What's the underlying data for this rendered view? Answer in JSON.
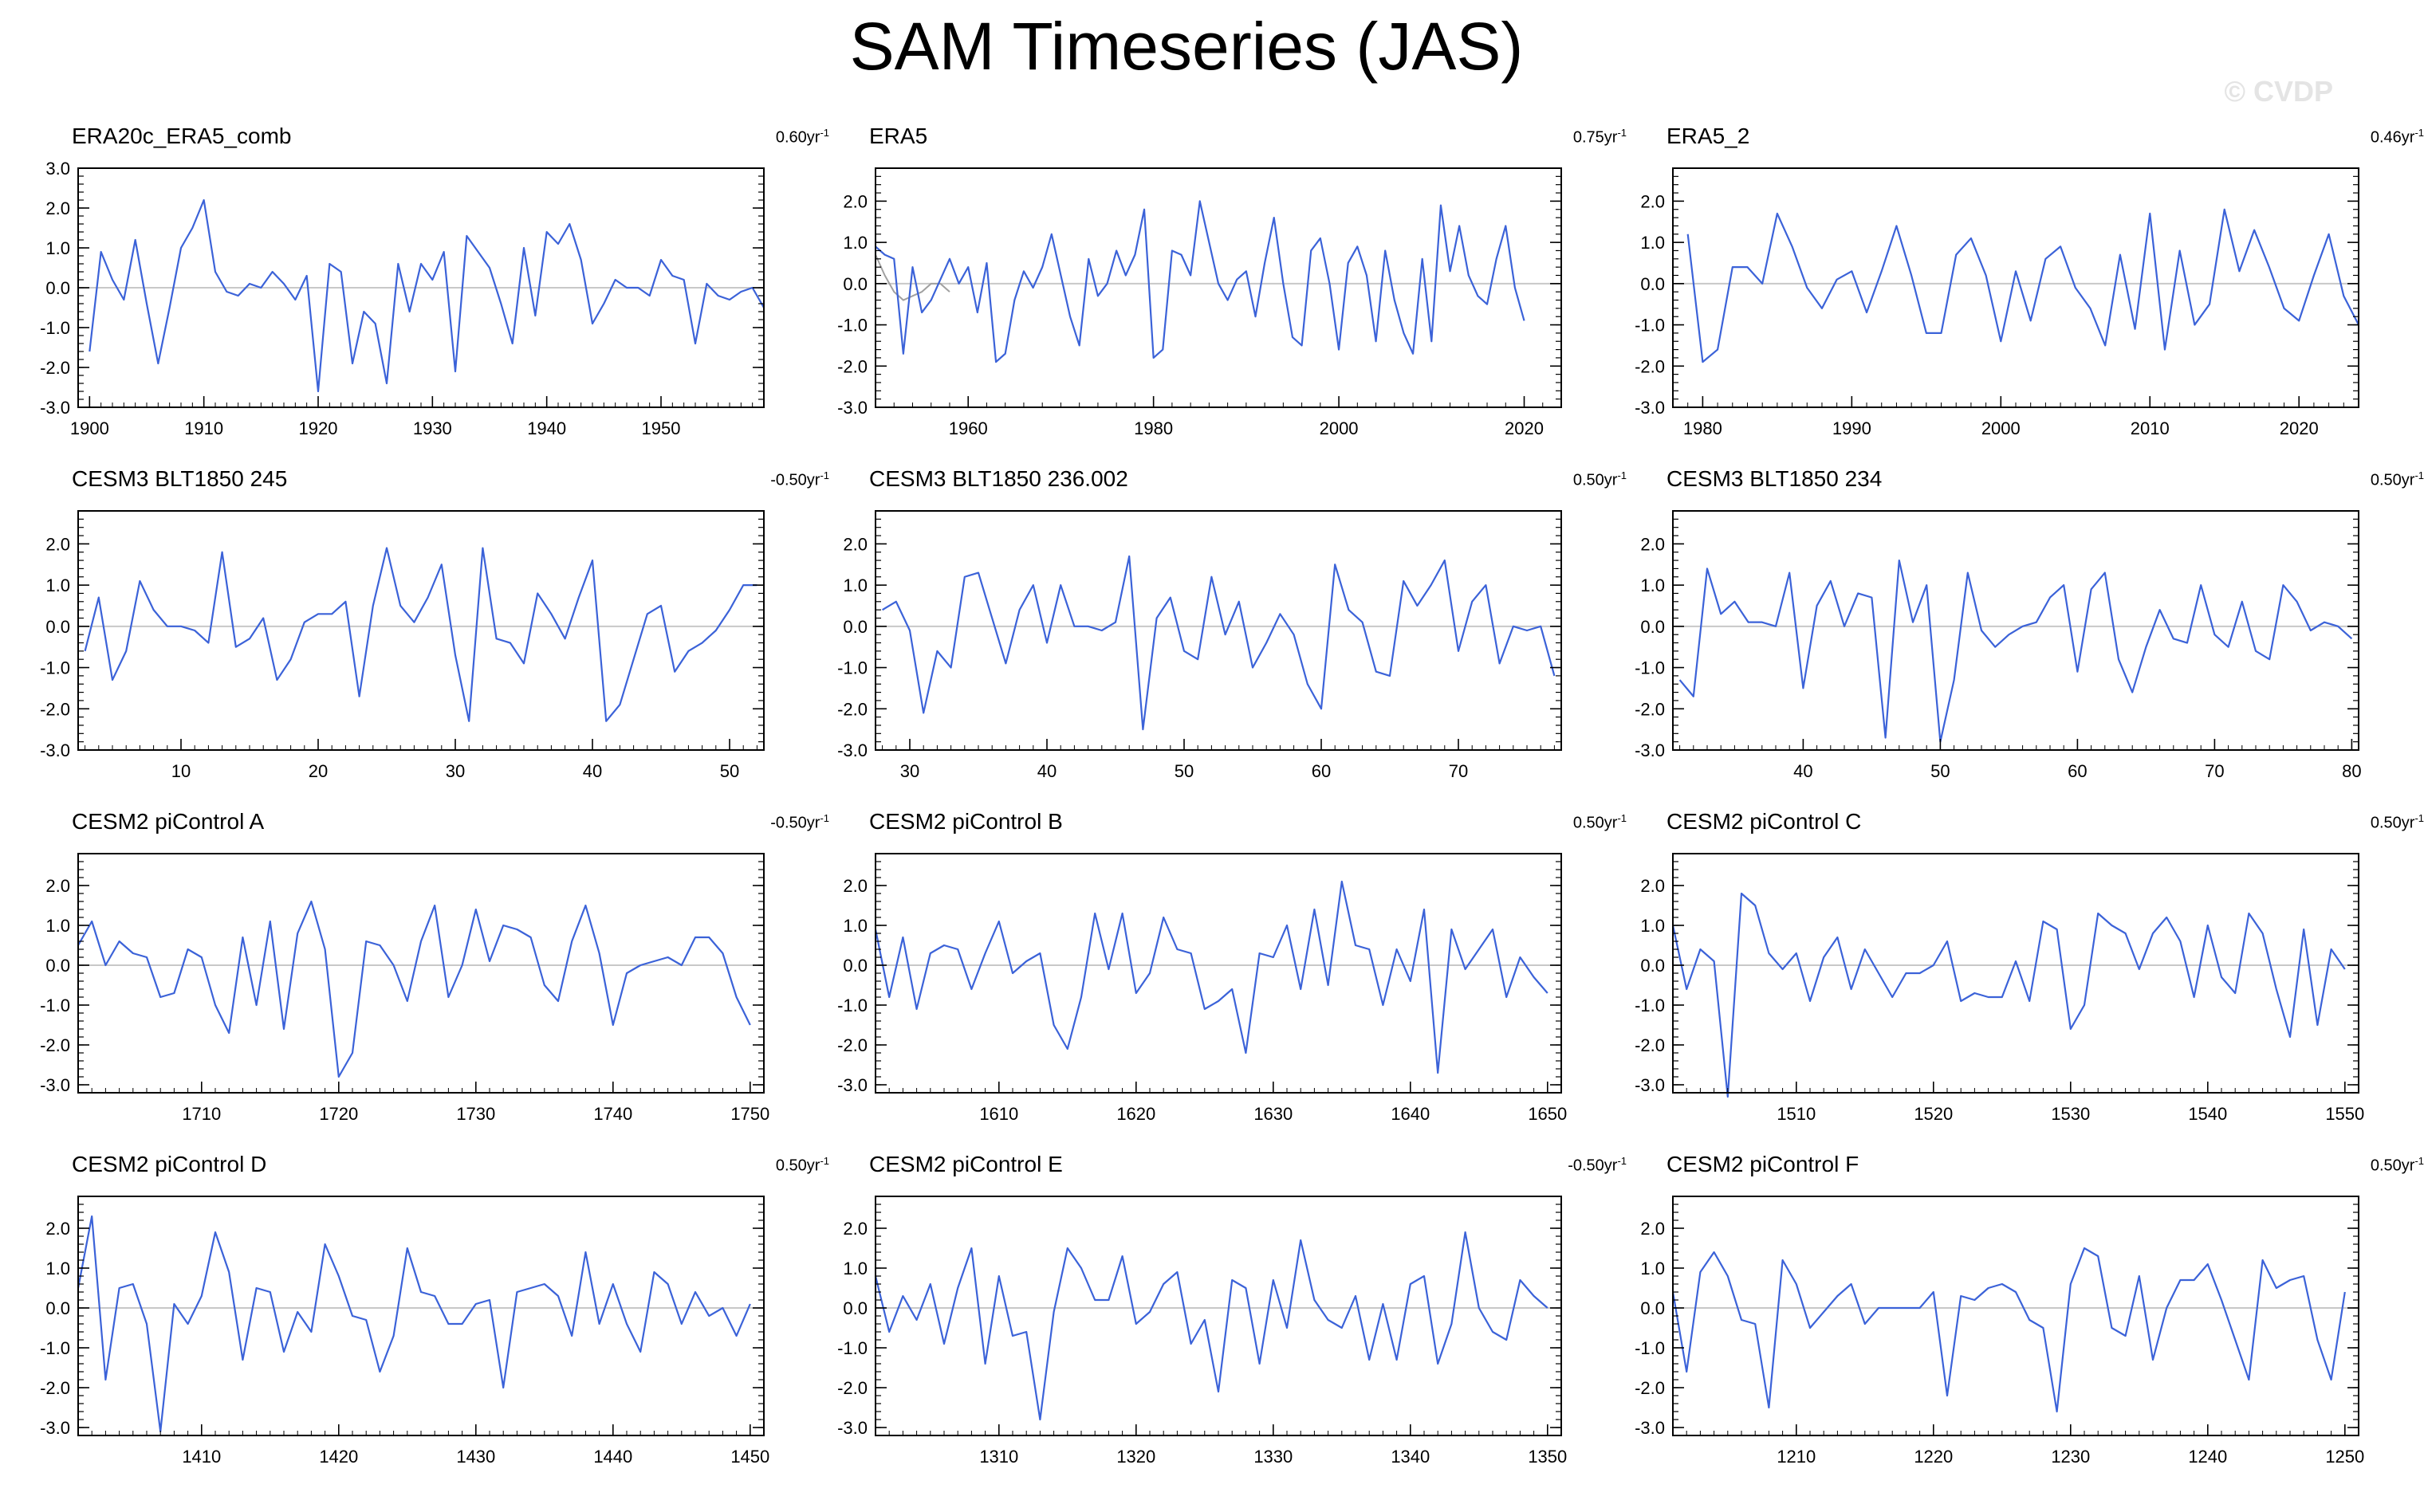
{
  "title": "SAM Timeseries (JAS)",
  "watermark": "© CVDP",
  "colors": {
    "series": "#3b62d8",
    "gray_series": "#a0a0a0",
    "zero": "#c8c8c8"
  },
  "chart_data": [
    {
      "type": "line",
      "name": "ERA20c_ERA5_comb",
      "trend": "0.60yr",
      "trend_exp": "-1",
      "xlim": [
        1899,
        1959
      ],
      "ylim": [
        -3,
        3
      ],
      "xticks": [
        1900,
        1910,
        1920,
        1930,
        1940,
        1950
      ],
      "yticks": [
        "3.0",
        "2.0",
        "1.0",
        "0.0",
        "-1.0",
        "-2.0",
        "-3.0"
      ],
      "x_start": 1900,
      "values": [
        -1.6,
        0.9,
        0.2,
        -0.3,
        1.2,
        -0.4,
        -1.9,
        -0.5,
        1.0,
        1.5,
        2.2,
        0.4,
        -0.1,
        -0.2,
        0.1,
        0.0,
        0.4,
        0.1,
        -0.3,
        0.3,
        -2.6,
        0.6,
        0.4,
        -1.9,
        -0.6,
        -0.9,
        -2.4,
        0.6,
        -0.6,
        0.6,
        0.2,
        0.9,
        -2.1,
        1.3,
        0.9,
        0.5,
        -0.4,
        -1.4,
        1.0,
        -0.7,
        1.4,
        1.1,
        1.6,
        0.7,
        -0.9,
        -0.4,
        0.2,
        0.0,
        0.0,
        -0.2,
        0.7,
        0.3,
        0.2,
        -1.4,
        0.1,
        -0.2,
        -0.3,
        -0.1,
        0.0,
        -0.5
      ]
    },
    {
      "type": "line",
      "name": "ERA5",
      "trend": "0.75yr",
      "trend_exp": "-1",
      "xlim": [
        1950,
        2024
      ],
      "ylim": [
        -3,
        2.8
      ],
      "xticks": [
        1960,
        1980,
        2000,
        2020
      ],
      "yticks": [
        "2.0",
        "1.0",
        "0.0",
        "-1.0",
        "-2.0",
        "-3.0"
      ],
      "x_start": 1950,
      "gray": {
        "x_start": 1950,
        "values": [
          0.7,
          0.2,
          -0.2,
          -0.4,
          -0.3,
          -0.2,
          0.0,
          0.0,
          -0.2
        ]
      },
      "values": [
        0.9,
        0.7,
        0.6,
        -1.7,
        0.4,
        -0.7,
        -0.4,
        0.1,
        0.6,
        0.0,
        0.4,
        -0.7,
        0.5,
        -1.9,
        -1.7,
        -0.4,
        0.3,
        -0.1,
        0.4,
        1.2,
        0.2,
        -0.8,
        -1.5,
        0.6,
        -0.3,
        0.0,
        0.8,
        0.2,
        0.7,
        1.8,
        -1.8,
        -1.6,
        0.8,
        0.7,
        0.2,
        2.0,
        1.0,
        0.0,
        -0.4,
        0.1,
        0.3,
        -0.8,
        0.5,
        1.6,
        0.0,
        -1.3,
        -1.5,
        0.8,
        1.1,
        0.0,
        -1.6,
        0.5,
        0.9,
        0.2,
        -1.4,
        0.8,
        -0.4,
        -1.2,
        -1.7,
        0.6,
        -1.4,
        1.9,
        0.3,
        1.4,
        0.2,
        -0.3,
        -0.5,
        0.6,
        1.4,
        -0.1,
        -0.9
      ]
    },
    {
      "type": "line",
      "name": "ERA5_2",
      "trend": "0.46yr",
      "trend_exp": "-1",
      "xlim": [
        1978,
        2024
      ],
      "ylim": [
        -3,
        2.8
      ],
      "xticks": [
        1980,
        1990,
        2000,
        2010,
        2020
      ],
      "yticks": [
        "2.0",
        "1.0",
        "0.0",
        "-1.0",
        "-2.0",
        "-3.0"
      ],
      "x_start": 1979,
      "values": [
        1.2,
        -1.9,
        -1.6,
        0.4,
        0.4,
        0.0,
        1.7,
        0.9,
        -0.1,
        -0.6,
        0.1,
        0.3,
        -0.7,
        0.3,
        1.4,
        0.2,
        -1.2,
        -1.2,
        0.7,
        1.1,
        0.2,
        -1.4,
        0.3,
        -0.9,
        0.6,
        0.9,
        -0.1,
        -0.6,
        -1.5,
        0.7,
        -1.1,
        1.7,
        -1.6,
        0.8,
        -1.0,
        -0.5,
        1.8,
        0.3,
        1.3,
        0.4,
        -0.6,
        -0.9,
        0.2,
        1.2,
        -0.3,
        -1.0
      ]
    },
    {
      "type": "line",
      "name": "CESM3 BLT1850 245",
      "trend": "-0.50yr",
      "trend_exp": "-1",
      "xlim": [
        2.5,
        52.5
      ],
      "ylim": [
        -3,
        2.8
      ],
      "xticks": [
        10,
        20,
        30,
        40,
        50
      ],
      "yticks": [
        "2.0",
        "1.0",
        "0.0",
        "-1.0",
        "-2.0",
        "-3.0"
      ],
      "x_start": 3,
      "values": [
        -0.6,
        0.7,
        -1.3,
        -0.6,
        1.1,
        0.4,
        0.0,
        0.0,
        -0.1,
        -0.4,
        1.8,
        -0.5,
        -0.3,
        0.2,
        -1.3,
        -0.8,
        0.1,
        0.3,
        0.3,
        0.6,
        -1.7,
        0.5,
        1.9,
        0.5,
        0.1,
        0.7,
        1.5,
        -0.7,
        -2.3,
        1.9,
        -0.3,
        -0.4,
        -0.9,
        0.8,
        0.3,
        -0.3,
        0.7,
        1.6,
        -2.3,
        -1.9,
        -0.8,
        0.3,
        0.5,
        -1.1,
        -0.6,
        -0.4,
        -0.1,
        0.4,
        1.0,
        1.0
      ]
    },
    {
      "type": "line",
      "name": "CESM3 BLT1850 236.002",
      "trend": "0.50yr",
      "trend_exp": "-1",
      "xlim": [
        27.5,
        77.5
      ],
      "ylim": [
        -3,
        2.8
      ],
      "xticks": [
        30,
        40,
        50,
        60,
        70
      ],
      "yticks": [
        "2.0",
        "1.0",
        "0.0",
        "-1.0",
        "-2.0",
        "-3.0"
      ],
      "x_start": 28,
      "values": [
        0.4,
        0.6,
        -0.1,
        -2.1,
        -0.6,
        -1.0,
        1.2,
        1.3,
        0.2,
        -0.9,
        0.4,
        1.0,
        -0.4,
        1.0,
        0.0,
        0.0,
        -0.1,
        0.1,
        1.7,
        -2.5,
        0.2,
        0.7,
        -0.6,
        -0.8,
        1.2,
        -0.2,
        0.6,
        -1.0,
        -0.4,
        0.3,
        -0.2,
        -1.4,
        -2.0,
        1.5,
        0.4,
        0.1,
        -1.1,
        -1.2,
        1.1,
        0.5,
        1.0,
        1.6,
        -0.6,
        0.6,
        1.0,
        -0.9,
        0.0,
        -0.1,
        0.0,
        -1.2
      ]
    },
    {
      "type": "line",
      "name": "CESM3 BLT1850 234",
      "trend": "0.50yr",
      "trend_exp": "-1",
      "xlim": [
        30.5,
        80.5
      ],
      "ylim": [
        -3,
        2.8
      ],
      "xticks": [
        40,
        50,
        60,
        70,
        80
      ],
      "yticks": [
        "2.0",
        "1.0",
        "0.0",
        "-1.0",
        "-2.0",
        "-3.0"
      ],
      "x_start": 31,
      "values": [
        -1.3,
        -1.7,
        1.4,
        0.3,
        0.6,
        0.1,
        0.1,
        0.0,
        1.3,
        -1.5,
        0.5,
        1.1,
        0.0,
        0.8,
        0.7,
        -2.7,
        1.6,
        0.1,
        1.0,
        -2.8,
        -1.3,
        1.3,
        -0.1,
        -0.5,
        -0.2,
        0.0,
        0.1,
        0.7,
        1.0,
        -1.1,
        0.9,
        1.3,
        -0.8,
        -1.6,
        -0.5,
        0.4,
        -0.3,
        -0.4,
        1.0,
        -0.2,
        -0.5,
        0.6,
        -0.6,
        -0.8,
        1.0,
        0.6,
        -0.1,
        0.1,
        0.0,
        -0.3
      ]
    },
    {
      "type": "line",
      "name": "CESM2 piControl A",
      "trend": "-0.50yr",
      "trend_exp": "-1",
      "xlim": [
        1701,
        1751
      ],
      "ylim": [
        -3.2,
        2.8
      ],
      "xticks": [
        1710,
        1720,
        1730,
        1740,
        1750
      ],
      "yticks": [
        "2.0",
        "1.0",
        "0.0",
        "-1.0",
        "-2.0",
        "-3.0"
      ],
      "x_start": 1701,
      "values": [
        0.5,
        1.1,
        0.0,
        0.6,
        0.3,
        0.2,
        -0.8,
        -0.7,
        0.4,
        0.2,
        -1.0,
        -1.7,
        0.7,
        -1.0,
        1.1,
        -1.6,
        0.8,
        1.6,
        0.4,
        -2.8,
        -2.2,
        0.6,
        0.5,
        0.0,
        -0.9,
        0.6,
        1.5,
        -0.8,
        0.0,
        1.4,
        0.1,
        1.0,
        0.9,
        0.7,
        -0.5,
        -0.9,
        0.6,
        1.5,
        0.3,
        -1.5,
        -0.2,
        0.0,
        0.1,
        0.2,
        0.0,
        0.7,
        0.7,
        0.3,
        -0.8,
        -1.5
      ]
    },
    {
      "type": "line",
      "name": "CESM2 piControl B",
      "trend": "0.50yr",
      "trend_exp": "-1",
      "xlim": [
        1601,
        1651
      ],
      "ylim": [
        -3.2,
        2.8
      ],
      "xticks": [
        1610,
        1620,
        1630,
        1640,
        1650
      ],
      "yticks": [
        "2.0",
        "1.0",
        "0.0",
        "-1.0",
        "-2.0",
        "-3.0"
      ],
      "x_start": 1601,
      "values": [
        0.9,
        -0.8,
        0.7,
        -1.1,
        0.3,
        0.5,
        0.4,
        -0.6,
        0.3,
        1.1,
        -0.2,
        0.1,
        0.3,
        -1.5,
        -2.1,
        -0.8,
        1.3,
        -0.1,
        1.3,
        -0.7,
        -0.2,
        1.2,
        0.4,
        0.3,
        -1.1,
        -0.9,
        -0.6,
        -2.2,
        0.3,
        0.2,
        1.0,
        -0.6,
        1.4,
        -0.5,
        2.1,
        0.5,
        0.4,
        -1.0,
        0.4,
        -0.4,
        1.4,
        -2.7,
        0.9,
        -0.1,
        0.4,
        0.9,
        -0.8,
        0.2,
        -0.3,
        -0.7
      ]
    },
    {
      "type": "line",
      "name": "CESM2 piControl C",
      "trend": "0.50yr",
      "trend_exp": "-1",
      "xlim": [
        1501,
        1551
      ],
      "ylim": [
        -3.2,
        2.8
      ],
      "xticks": [
        1510,
        1520,
        1530,
        1540,
        1550
      ],
      "yticks": [
        "2.0",
        "1.0",
        "0.0",
        "-1.0",
        "-2.0",
        "-3.0"
      ],
      "x_start": 1501,
      "values": [
        1.0,
        -0.6,
        0.4,
        0.1,
        -3.3,
        1.8,
        1.5,
        0.3,
        -0.1,
        0.3,
        -0.9,
        0.2,
        0.7,
        -0.6,
        0.4,
        -0.2,
        -0.8,
        -0.2,
        -0.2,
        0.0,
        0.6,
        -0.9,
        -0.7,
        -0.8,
        -0.8,
        0.1,
        -0.9,
        1.1,
        0.9,
        -1.6,
        -1.0,
        1.3,
        1.0,
        0.8,
        -0.1,
        0.8,
        1.2,
        0.6,
        -0.8,
        1.0,
        -0.3,
        -0.7,
        1.3,
        0.8,
        -0.6,
        -1.8,
        0.9,
        -1.5,
        0.4,
        -0.1
      ]
    },
    {
      "type": "line",
      "name": "CESM2 piControl D",
      "trend": "0.50yr",
      "trend_exp": "-1",
      "xlim": [
        1401,
        1451
      ],
      "ylim": [
        -3.2,
        2.8
      ],
      "xticks": [
        1410,
        1420,
        1430,
        1440,
        1450
      ],
      "yticks": [
        "2.0",
        "1.0",
        "0.0",
        "-1.0",
        "-2.0",
        "-3.0"
      ],
      "x_start": 1401,
      "values": [
        0.5,
        2.3,
        -1.8,
        0.5,
        0.6,
        -0.4,
        -3.1,
        0.1,
        -0.4,
        0.3,
        1.9,
        0.9,
        -1.3,
        0.5,
        0.4,
        -1.1,
        -0.1,
        -0.6,
        1.6,
        0.8,
        -0.2,
        -0.3,
        -1.6,
        -0.7,
        1.5,
        0.4,
        0.3,
        -0.4,
        -0.4,
        0.1,
        0.2,
        -2.0,
        0.4,
        0.5,
        0.6,
        0.3,
        -0.7,
        1.4,
        -0.4,
        0.6,
        -0.4,
        -1.1,
        0.9,
        0.6,
        -0.4,
        0.4,
        -0.2,
        0.0,
        -0.7,
        0.1
      ]
    },
    {
      "type": "line",
      "name": "CESM2 piControl E",
      "trend": "-0.50yr",
      "trend_exp": "-1",
      "xlim": [
        1301,
        1351
      ],
      "ylim": [
        -3.2,
        2.8
      ],
      "xticks": [
        1310,
        1320,
        1330,
        1340,
        1350
      ],
      "yticks": [
        "2.0",
        "1.0",
        "0.0",
        "-1.0",
        "-2.0",
        "-3.0"
      ],
      "x_start": 1301,
      "values": [
        0.8,
        -0.6,
        0.3,
        -0.3,
        0.6,
        -0.9,
        0.5,
        1.5,
        -1.4,
        0.8,
        -0.7,
        -0.6,
        -2.8,
        -0.1,
        1.5,
        1.0,
        0.2,
        0.2,
        1.3,
        -0.4,
        -0.1,
        0.6,
        0.9,
        -0.9,
        -0.3,
        -2.1,
        0.7,
        0.5,
        -1.4,
        0.7,
        -0.5,
        1.7,
        0.2,
        -0.3,
        -0.5,
        0.3,
        -1.3,
        0.1,
        -1.3,
        0.6,
        0.8,
        -1.4,
        -0.4,
        1.9,
        0.0,
        -0.6,
        -0.8,
        0.7,
        0.3,
        0.0
      ]
    },
    {
      "type": "line",
      "name": "CESM2 piControl F",
      "trend": "0.50yr",
      "trend_exp": "-1",
      "xlim": [
        1201,
        1251
      ],
      "ylim": [
        -3.2,
        2.8
      ],
      "xticks": [
        1210,
        1220,
        1230,
        1240,
        1250
      ],
      "yticks": [
        "2.0",
        "1.0",
        "0.0",
        "-1.0",
        "-2.0",
        "-3.0"
      ],
      "x_start": 1201,
      "values": [
        0.4,
        -1.6,
        0.9,
        1.4,
        0.8,
        -0.3,
        -0.4,
        -2.5,
        1.2,
        0.6,
        -0.5,
        -0.1,
        0.3,
        0.6,
        -0.4,
        0.0,
        0.0,
        0.0,
        0.0,
        0.4,
        -2.2,
        0.3,
        0.2,
        0.5,
        0.6,
        0.4,
        -0.3,
        -0.5,
        -2.6,
        0.6,
        1.5,
        1.3,
        -0.5,
        -0.7,
        0.8,
        -1.3,
        0.0,
        0.7,
        0.7,
        1.1,
        0.2,
        -0.8,
        -1.8,
        1.2,
        0.5,
        0.7,
        0.8,
        -0.8,
        -1.8,
        0.4
      ]
    }
  ]
}
